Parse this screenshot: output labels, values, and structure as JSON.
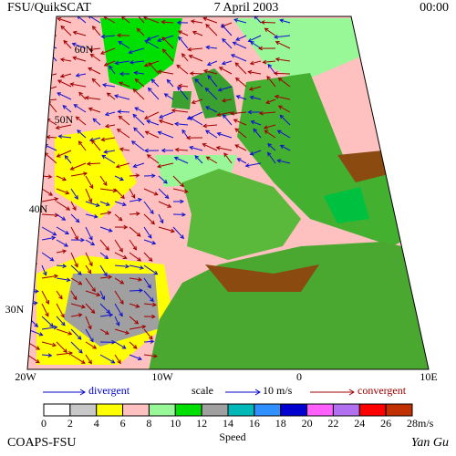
{
  "header": {
    "left": "FSU/QuikSCAT",
    "center": "7 April 2003",
    "right": "00:00"
  },
  "map": {
    "lat_labels": [
      "60N",
      "50N",
      "40N",
      "30N"
    ],
    "lon_labels": [
      "20W",
      "10W",
      "0",
      "10E"
    ]
  },
  "legend": {
    "divergent": "divergent",
    "scale": "scale",
    "scale_value": "10 m/s",
    "convergent": "convergent"
  },
  "speed_scale": {
    "title": "Speed",
    "unit": "m/s",
    "bounds": [
      0,
      2,
      4,
      6,
      8,
      10,
      12,
      14,
      16,
      18,
      20,
      22,
      24,
      26,
      28
    ],
    "colors": [
      "#ffffff",
      "#c8c8c8",
      "#ffff00",
      "#ffc0c0",
      "#98f898",
      "#00e000",
      "#a0a0a0",
      "#00b8b8",
      "#3090ff",
      "#0000d0",
      "#ff60ff",
      "#b070f0",
      "#ff0000",
      "#c03000"
    ]
  },
  "footer": {
    "left": "COAPS-FSU",
    "right": "Yan Gu"
  }
}
